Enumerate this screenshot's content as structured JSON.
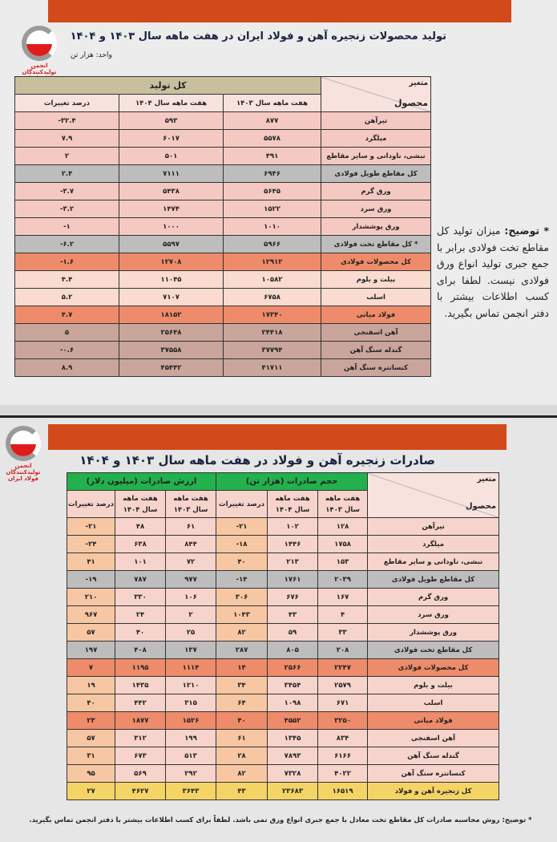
{
  "production": {
    "title": "تولید محصولات زنجیره آهن و فولاد ایران در هفت ماهه سال ۱۴۰۳ و ۱۴۰۴",
    "unit": "واحد: هزار تن",
    "logo_text": "انجمن تولیدکنندگان فولاد ایران",
    "header": {
      "variable": "متغیر",
      "product": "محصول",
      "group": "کل تولید",
      "col_1403": "هفت ماهه سال ۱۴۰۳",
      "col_1404": "هفت ماهه سال ۱۴۰۴",
      "col_change": "درصد تغییرات"
    },
    "rows": [
      {
        "name": "تیرآهن",
        "v1403": "۸۷۷",
        "v1404": "۵۹۳",
        "change": "-۳۲.۴",
        "type": "normal"
      },
      {
        "name": "میلگرد",
        "v1403": "۵۵۷۸",
        "v1404": "۶۰۱۷",
        "change": "۷.۹",
        "type": "normal"
      },
      {
        "name": "نبشی، ناودانی و سایر مقاطع",
        "v1403": "۴۹۱",
        "v1404": "۵۰۱",
        "change": "۲",
        "type": "normal"
      },
      {
        "name": "کل مقاطع طویل فولادی",
        "v1403": "۶۹۴۶",
        "v1404": "۷۱۱۱",
        "change": "۲.۴",
        "type": "gray"
      },
      {
        "name": "ورق گرم",
        "v1403": "۵۶۴۵",
        "v1404": "۵۴۳۸",
        "change": "-۳.۷",
        "type": "normal"
      },
      {
        "name": "ورق سرد",
        "v1403": "۱۵۲۲",
        "v1404": "۱۴۷۴",
        "change": "-۳.۲",
        "type": "normal"
      },
      {
        "name": "ورق پوششدار",
        "v1403": "۱۰۱۰",
        "v1404": "۱۰۰۰",
        "change": "-۱",
        "type": "normal"
      },
      {
        "name": "* کل مقاطع تخت فولادی",
        "v1403": "۵۹۶۶",
        "v1404": "۵۵۹۷",
        "change": "-۶.۲",
        "type": "gray"
      },
      {
        "name": "کل محصولات فولادی",
        "v1403": "۱۲۹۱۲",
        "v1404": "۱۲۷۰۸",
        "change": "-۱.۶",
        "type": "orange"
      },
      {
        "name": "بیلت و بلوم",
        "v1403": "۱۰۵۸۲",
        "v1404": "۱۱۰۴۵",
        "change": "۴.۴",
        "type": "peach"
      },
      {
        "name": "اسلب",
        "v1403": "۶۷۵۸",
        "v1404": "۷۱۰۷",
        "change": "۵.۲",
        "type": "peach"
      },
      {
        "name": "فولاد میانی",
        "v1403": "۱۷۳۴۰",
        "v1404": "۱۸۱۵۲",
        "change": "۴.۷",
        "type": "orange"
      },
      {
        "name": "آهن اسفنجی",
        "v1403": "۲۴۴۱۸",
        "v1404": "۲۵۶۴۸",
        "change": "۵",
        "type": "brown"
      },
      {
        "name": "گندله سنگ آهن",
        "v1403": "۳۷۷۹۴",
        "v1404": "۳۷۵۵۸",
        "change": "-۰.۶",
        "type": "brown"
      },
      {
        "name": "کنسانتره سنگ آهن",
        "v1403": "۴۱۷۱۱",
        "v1404": "۴۵۴۴۲",
        "change": "۸.۹",
        "type": "brown"
      }
    ],
    "note_label": "* توضیح:",
    "note_text": "میزان تولید کل مقاطع تخت فولادی برابر با جمع جبری تولید انواع ورق فولادی نیست. لطفا برای کسب اطلاعات بیشتر با دفتر انجمن تماس بگیرید."
  },
  "exports": {
    "title": "صادرات زنجیره آهن و فولاد در هفت ماهه سال ۱۴۰۳ و ۱۴۰۴",
    "logo_text": "انجمن تولیدکنندگان فولاد ایران",
    "header": {
      "variable": "متغیر",
      "product": "محصول",
      "volume_group": "حجم صادرات (هزار تن)",
      "value_group": "ارزش صادرات (میلیون دلار)",
      "col_1403": "هفت ماهه سال ۱۴۰۳",
      "col_1404": "هفت ماهه سال ۱۴۰۴",
      "col_change": "درصد تغییرات"
    },
    "rows": [
      {
        "name": "تیرآهن",
        "vol1403": "۱۲۸",
        "vol1404": "۱۰۲",
        "volchg": "-۲۱",
        "val1403": "۶۱",
        "val1404": "۴۸",
        "valchg": "-۲۱",
        "type": "normal"
      },
      {
        "name": "میلگرد",
        "vol1403": "۱۷۵۸",
        "vol1404": "۱۴۴۶",
        "volchg": "-۱۸",
        "val1403": "۸۴۴",
        "val1404": "۶۳۸",
        "valchg": "-۲۴",
        "type": "normal"
      },
      {
        "name": "نبشی، ناودانی و سایر مقاطع",
        "vol1403": "۱۵۳",
        "vol1404": "۲۱۳",
        "volchg": "۴۰",
        "val1403": "۷۲",
        "val1404": "۱۰۱",
        "valchg": "۴۱",
        "type": "normal"
      },
      {
        "name": "کل مقاطع طویل فولادی",
        "vol1403": "۲۰۳۹",
        "vol1404": "۱۷۶۱",
        "volchg": "-۱۴",
        "val1403": "۹۷۷",
        "val1404": "۷۸۷",
        "valchg": "-۱۹",
        "type": "gray"
      },
      {
        "name": "ورق گرم",
        "vol1403": "۱۶۷",
        "vol1404": "۶۷۶",
        "volchg": "۳۰۶",
        "val1403": "۱۰۶",
        "val1404": "۳۳۰",
        "valchg": "۲۱۰",
        "type": "normal"
      },
      {
        "name": "ورق سرد",
        "vol1403": "۴",
        "vol1404": "۴۳",
        "volchg": "۱۰۴۳",
        "val1403": "۲",
        "val1404": "۲۴",
        "valchg": "۹۶۷",
        "type": "normal"
      },
      {
        "name": "ورق پوششدار",
        "vol1403": "۳۳",
        "vol1404": "۵۹",
        "volchg": "۸۲",
        "val1403": "۲۵",
        "val1404": "۴۰",
        "valchg": "۵۷",
        "type": "normal"
      },
      {
        "name": "کل مقاطع تخت فولادی",
        "vol1403": "۲۰۸",
        "vol1404": "۸۰۵",
        "volchg": "۲۸۷",
        "val1403": "۱۳۷",
        "val1404": "۴۰۸",
        "valchg": "۱۹۷",
        "type": "gray"
      },
      {
        "name": "کل محصولات فولادی",
        "vol1403": "۲۲۴۷",
        "vol1404": "۲۵۶۶",
        "volchg": "۱۴",
        "val1403": "۱۱۱۴",
        "val1404": "۱۱۹۵",
        "valchg": "۷",
        "type": "orange"
      },
      {
        "name": "بیلت و بلوم",
        "vol1403": "۲۵۷۹",
        "vol1404": "۳۴۵۴",
        "volchg": "۳۴",
        "val1403": "۱۲۱۰",
        "val1404": "۱۴۳۵",
        "valchg": "۱۹",
        "type": "normal"
      },
      {
        "name": "اسلب",
        "vol1403": "۶۷۱",
        "vol1404": "۱۰۹۸",
        "volchg": "۶۴",
        "val1403": "۳۱۵",
        "val1404": "۴۴۲",
        "valchg": "۴۰",
        "type": "normal"
      },
      {
        "name": "فولاد میانی",
        "vol1403": "۳۲۵۰",
        "vol1404": "۴۵۵۲",
        "volchg": "۴۰",
        "val1403": "۱۵۲۶",
        "val1404": "۱۸۷۷",
        "valchg": "۲۳",
        "type": "orange"
      },
      {
        "name": "آهن اسفنجی",
        "vol1403": "۸۳۴",
        "vol1404": "۱۳۴۵",
        "volchg": "۶۱",
        "val1403": "۱۹۹",
        "val1404": "۳۱۲",
        "valchg": "۵۷",
        "type": "normal"
      },
      {
        "name": "گندله سنگ آهن",
        "vol1403": "۶۱۶۶",
        "vol1404": "۷۸۹۳",
        "volchg": "۲۸",
        "val1403": "۵۱۳",
        "val1404": "۶۷۳",
        "valchg": "۳۱",
        "type": "normal"
      },
      {
        "name": "کنسانتره سنگ آهن",
        "vol1403": "۴۰۲۲",
        "vol1404": "۷۳۲۸",
        "volchg": "۸۲",
        "val1403": "۲۹۲",
        "val1404": "۵۶۹",
        "valchg": "۹۵",
        "type": "normal"
      },
      {
        "name": "کل زنجیره آهن و فولاد",
        "vol1403": "۱۶۵۱۹",
        "vol1404": "۲۳۶۸۳",
        "volchg": "۴۳",
        "val1403": "۳۶۴۳",
        "val1404": "۴۶۲۷",
        "valchg": "۲۷",
        "type": "yellow"
      }
    ],
    "note": "* توضیح: روش محاسبه صادرات کل مقاطع تخت معادل با جمع جبری انواع ورق نمی باشد. لطفاً برای کسب اطلاعات بیشتر با دفتر انجمن تماس بگیرید."
  },
  "colors": {
    "banner": "#d24a1a",
    "group_header_production": "#c8bf9f",
    "group_header_exports": "#22b14c",
    "total_gray": "#bdbdbd",
    "steel_orange": "#ee8b6a",
    "chain_yellow": "#f5d466"
  }
}
